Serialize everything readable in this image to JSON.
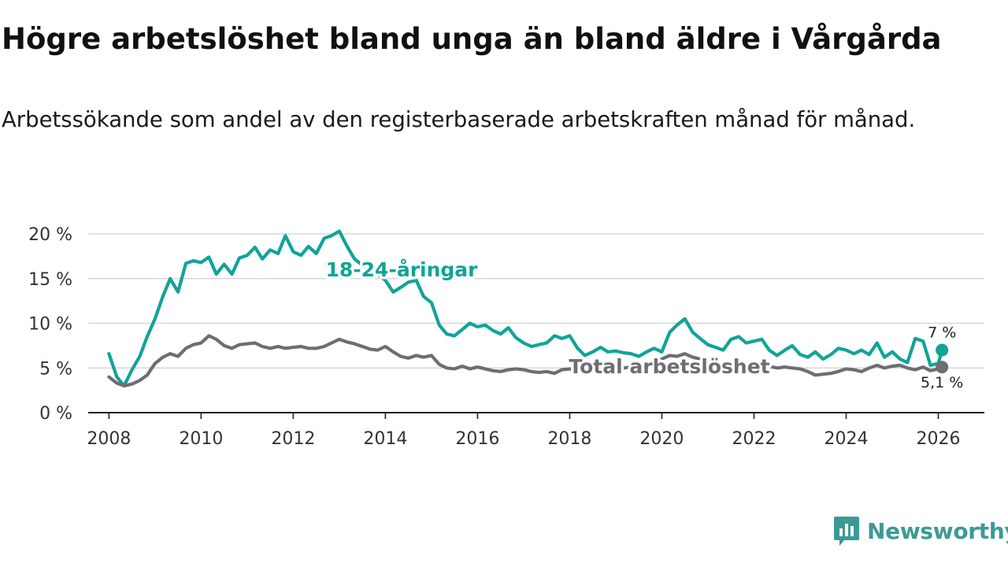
{
  "title": "Högre arbetslöshet bland unga än bland äldre i Vårgårda",
  "subtitle": "Arbetssökande som andel av den registerbaserade arbetskraften månad för månad.",
  "brand": "Newsworthy",
  "colors": {
    "youth": "#10a498",
    "total": "#6e6e72",
    "grid": "#d7d7d7",
    "axis": "#222222",
    "brand": "#3b9a96"
  },
  "chart_data": {
    "type": "line",
    "title": "Högre arbetslöshet bland unga än bland äldre i Vårgårda",
    "xlabel": "",
    "ylabel": "",
    "xlim": [
      2007.55,
      2027.0
    ],
    "ylim": [
      0,
      20
    ],
    "yticks": [
      0,
      5,
      10,
      15,
      20
    ],
    "ytick_labels": [
      "0 %",
      "5 %",
      "10 %",
      "15 %",
      "20 %"
    ],
    "xticks": [
      2008,
      2010,
      2012,
      2014,
      2016,
      2018,
      2020,
      2022,
      2024,
      2026
    ],
    "xtick_labels": [
      "2008",
      "2010",
      "2012",
      "2014",
      "2016",
      "2018",
      "2020",
      "2022",
      "2024",
      "2026"
    ],
    "grid": true,
    "series": [
      {
        "name": "18-24-åringar",
        "end_label": "7 %",
        "points": [
          [
            2008.0,
            6.6
          ],
          [
            2008.17,
            4.0
          ],
          [
            2008.33,
            3.0
          ],
          [
            2008.5,
            4.8
          ],
          [
            2008.67,
            6.3
          ],
          [
            2008.83,
            8.5
          ],
          [
            2009.0,
            10.5
          ],
          [
            2009.17,
            13.0
          ],
          [
            2009.33,
            15.0
          ],
          [
            2009.5,
            13.5
          ],
          [
            2009.67,
            16.7
          ],
          [
            2009.83,
            17.0
          ],
          [
            2010.0,
            16.8
          ],
          [
            2010.17,
            17.4
          ],
          [
            2010.33,
            15.5
          ],
          [
            2010.5,
            16.6
          ],
          [
            2010.67,
            15.5
          ],
          [
            2010.83,
            17.3
          ],
          [
            2011.0,
            17.6
          ],
          [
            2011.17,
            18.5
          ],
          [
            2011.33,
            17.2
          ],
          [
            2011.5,
            18.2
          ],
          [
            2011.67,
            17.8
          ],
          [
            2011.83,
            19.8
          ],
          [
            2012.0,
            18.0
          ],
          [
            2012.17,
            17.6
          ],
          [
            2012.33,
            18.6
          ],
          [
            2012.5,
            17.8
          ],
          [
            2012.67,
            19.5
          ],
          [
            2012.83,
            19.8
          ],
          [
            2013.0,
            20.3
          ],
          [
            2013.17,
            18.6
          ],
          [
            2013.33,
            17.2
          ],
          [
            2013.5,
            16.5
          ],
          [
            2013.67,
            15.8
          ],
          [
            2013.83,
            15.5
          ],
          [
            2014.0,
            14.8
          ],
          [
            2014.17,
            13.5
          ],
          [
            2014.33,
            14.0
          ],
          [
            2014.5,
            14.6
          ],
          [
            2014.67,
            14.8
          ],
          [
            2014.83,
            13.0
          ],
          [
            2015.0,
            12.3
          ],
          [
            2015.17,
            9.8
          ],
          [
            2015.33,
            8.8
          ],
          [
            2015.5,
            8.6
          ],
          [
            2015.67,
            9.3
          ],
          [
            2015.83,
            10.0
          ],
          [
            2016.0,
            9.6
          ],
          [
            2016.17,
            9.8
          ],
          [
            2016.33,
            9.2
          ],
          [
            2016.5,
            8.8
          ],
          [
            2016.67,
            9.5
          ],
          [
            2016.83,
            8.4
          ],
          [
            2017.0,
            7.8
          ],
          [
            2017.17,
            7.4
          ],
          [
            2017.33,
            7.6
          ],
          [
            2017.5,
            7.8
          ],
          [
            2017.67,
            8.6
          ],
          [
            2017.83,
            8.3
          ],
          [
            2018.0,
            8.6
          ],
          [
            2018.17,
            7.2
          ],
          [
            2018.33,
            6.4
          ],
          [
            2018.5,
            6.8
          ],
          [
            2018.67,
            7.3
          ],
          [
            2018.83,
            6.8
          ],
          [
            2019.0,
            6.9
          ],
          [
            2019.17,
            6.7
          ],
          [
            2019.33,
            6.6
          ],
          [
            2019.5,
            6.3
          ],
          [
            2019.67,
            6.8
          ],
          [
            2019.83,
            7.2
          ],
          [
            2020.0,
            6.8
          ],
          [
            2020.17,
            9.0
          ],
          [
            2020.33,
            9.8
          ],
          [
            2020.5,
            10.5
          ],
          [
            2020.67,
            9.0
          ],
          [
            2020.83,
            8.3
          ],
          [
            2021.0,
            7.6
          ],
          [
            2021.17,
            7.3
          ],
          [
            2021.33,
            7.0
          ],
          [
            2021.5,
            8.2
          ],
          [
            2021.67,
            8.5
          ],
          [
            2021.83,
            7.8
          ],
          [
            2022.0,
            8.0
          ],
          [
            2022.17,
            8.2
          ],
          [
            2022.33,
            7.0
          ],
          [
            2022.5,
            6.4
          ],
          [
            2022.67,
            7.0
          ],
          [
            2022.83,
            7.5
          ],
          [
            2023.0,
            6.5
          ],
          [
            2023.17,
            6.2
          ],
          [
            2023.33,
            6.8
          ],
          [
            2023.5,
            6.0
          ],
          [
            2023.67,
            6.5
          ],
          [
            2023.83,
            7.2
          ],
          [
            2024.0,
            7.0
          ],
          [
            2024.17,
            6.6
          ],
          [
            2024.33,
            7.0
          ],
          [
            2024.5,
            6.5
          ],
          [
            2024.67,
            7.8
          ],
          [
            2024.83,
            6.2
          ],
          [
            2025.0,
            6.8
          ],
          [
            2025.17,
            6.0
          ],
          [
            2025.33,
            5.6
          ],
          [
            2025.5,
            8.3
          ],
          [
            2025.67,
            8.0
          ],
          [
            2025.83,
            5.3
          ],
          [
            2026.0,
            5.5
          ],
          [
            2026.08,
            7.0
          ]
        ]
      },
      {
        "name": "Total arbetslöshet",
        "end_label": "5,1 %",
        "points": [
          [
            2008.0,
            4.0
          ],
          [
            2008.17,
            3.3
          ],
          [
            2008.33,
            3.0
          ],
          [
            2008.5,
            3.2
          ],
          [
            2008.67,
            3.6
          ],
          [
            2008.83,
            4.2
          ],
          [
            2009.0,
            5.5
          ],
          [
            2009.17,
            6.2
          ],
          [
            2009.33,
            6.6
          ],
          [
            2009.5,
            6.3
          ],
          [
            2009.67,
            7.2
          ],
          [
            2009.83,
            7.6
          ],
          [
            2010.0,
            7.8
          ],
          [
            2010.17,
            8.6
          ],
          [
            2010.33,
            8.2
          ],
          [
            2010.5,
            7.5
          ],
          [
            2010.67,
            7.2
          ],
          [
            2010.83,
            7.6
          ],
          [
            2011.0,
            7.7
          ],
          [
            2011.17,
            7.8
          ],
          [
            2011.33,
            7.4
          ],
          [
            2011.5,
            7.2
          ],
          [
            2011.67,
            7.4
          ],
          [
            2011.83,
            7.2
          ],
          [
            2012.0,
            7.3
          ],
          [
            2012.17,
            7.4
          ],
          [
            2012.33,
            7.2
          ],
          [
            2012.5,
            7.2
          ],
          [
            2012.67,
            7.4
          ],
          [
            2012.83,
            7.8
          ],
          [
            2013.0,
            8.2
          ],
          [
            2013.17,
            7.9
          ],
          [
            2013.33,
            7.7
          ],
          [
            2013.5,
            7.4
          ],
          [
            2013.67,
            7.1
          ],
          [
            2013.83,
            7.0
          ],
          [
            2014.0,
            7.4
          ],
          [
            2014.17,
            6.8
          ],
          [
            2014.33,
            6.3
          ],
          [
            2014.5,
            6.1
          ],
          [
            2014.67,
            6.4
          ],
          [
            2014.83,
            6.2
          ],
          [
            2015.0,
            6.4
          ],
          [
            2015.17,
            5.4
          ],
          [
            2015.33,
            5.0
          ],
          [
            2015.5,
            4.9
          ],
          [
            2015.67,
            5.2
          ],
          [
            2015.83,
            4.9
          ],
          [
            2016.0,
            5.1
          ],
          [
            2016.17,
            4.9
          ],
          [
            2016.33,
            4.7
          ],
          [
            2016.5,
            4.6
          ],
          [
            2016.67,
            4.8
          ],
          [
            2016.83,
            4.9
          ],
          [
            2017.0,
            4.8
          ],
          [
            2017.17,
            4.6
          ],
          [
            2017.33,
            4.5
          ],
          [
            2017.5,
            4.6
          ],
          [
            2017.67,
            4.4
          ],
          [
            2017.83,
            4.8
          ],
          [
            2018.0,
            4.9
          ],
          [
            2018.17,
            4.8
          ],
          [
            2018.33,
            4.7
          ],
          [
            2018.5,
            4.8
          ],
          [
            2018.67,
            4.9
          ],
          [
            2018.83,
            4.8
          ],
          [
            2019.0,
            4.9
          ],
          [
            2019.17,
            5.0
          ],
          [
            2019.33,
            5.1
          ],
          [
            2019.5,
            5.2
          ],
          [
            2019.67,
            5.4
          ],
          [
            2019.83,
            5.6
          ],
          [
            2020.0,
            6.0
          ],
          [
            2020.17,
            6.4
          ],
          [
            2020.33,
            6.3
          ],
          [
            2020.5,
            6.6
          ],
          [
            2020.67,
            6.2
          ],
          [
            2020.83,
            6.0
          ],
          [
            2021.0,
            5.8
          ],
          [
            2021.17,
            5.6
          ],
          [
            2021.33,
            5.4
          ],
          [
            2021.5,
            5.6
          ],
          [
            2021.67,
            5.4
          ],
          [
            2021.83,
            5.5
          ],
          [
            2022.0,
            5.2
          ],
          [
            2022.17,
            5.1
          ],
          [
            2022.33,
            5.2
          ],
          [
            2022.5,
            5.0
          ],
          [
            2022.67,
            5.1
          ],
          [
            2022.83,
            5.0
          ],
          [
            2023.0,
            4.9
          ],
          [
            2023.17,
            4.6
          ],
          [
            2023.33,
            4.2
          ],
          [
            2023.5,
            4.3
          ],
          [
            2023.67,
            4.4
          ],
          [
            2023.83,
            4.6
          ],
          [
            2024.0,
            4.9
          ],
          [
            2024.17,
            4.8
          ],
          [
            2024.33,
            4.6
          ],
          [
            2024.5,
            5.0
          ],
          [
            2024.67,
            5.3
          ],
          [
            2024.83,
            5.0
          ],
          [
            2025.0,
            5.2
          ],
          [
            2025.17,
            5.3
          ],
          [
            2025.33,
            5.0
          ],
          [
            2025.5,
            4.8
          ],
          [
            2025.67,
            5.1
          ],
          [
            2025.83,
            4.7
          ],
          [
            2026.0,
            4.9
          ],
          [
            2026.08,
            5.1
          ]
        ]
      }
    ]
  }
}
